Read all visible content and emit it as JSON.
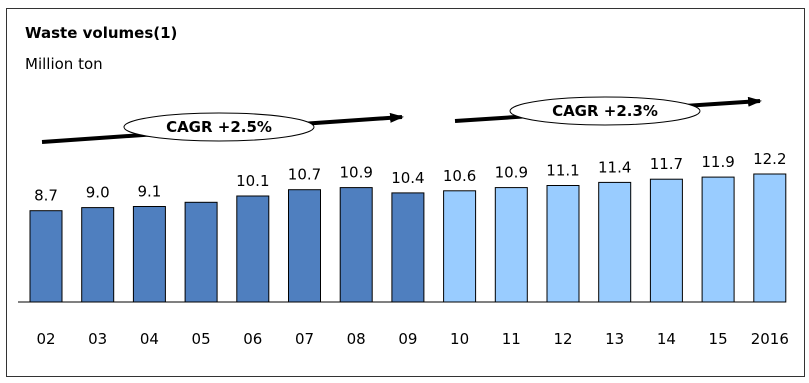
{
  "chart_data": {
    "type": "bar",
    "title": "Waste volumes(1)",
    "subtitle": "Million ton",
    "categories": [
      "02",
      "03",
      "04",
      "05",
      "06",
      "07",
      "08",
      "09",
      "10",
      "11",
      "12",
      "13",
      "14",
      "15",
      "2016"
    ],
    "values": [
      8.7,
      9.0,
      9.1,
      9.5,
      10.1,
      10.7,
      10.9,
      10.4,
      10.6,
      10.9,
      11.1,
      11.4,
      11.7,
      11.9,
      12.2
    ],
    "data_labels": [
      "8.7",
      "9.0",
      "9.1",
      "",
      "10.1",
      "10.7",
      "10.9",
      "10.4",
      "10.6",
      "10.9",
      "11.1",
      "11.4",
      "11.7",
      "11.9",
      "12.2"
    ],
    "series_colors": {
      "historical": "#4F7FBF",
      "forecast": "#99CCFF"
    },
    "forecast_start_index": 8,
    "annotations": [
      {
        "text": "CAGR +2.5%",
        "range": [
          "02",
          "09"
        ]
      },
      {
        "text": "CAGR +2.3%",
        "range": [
          "10",
          "2016"
        ]
      }
    ],
    "y_axis_visible": false,
    "grid": false
  }
}
